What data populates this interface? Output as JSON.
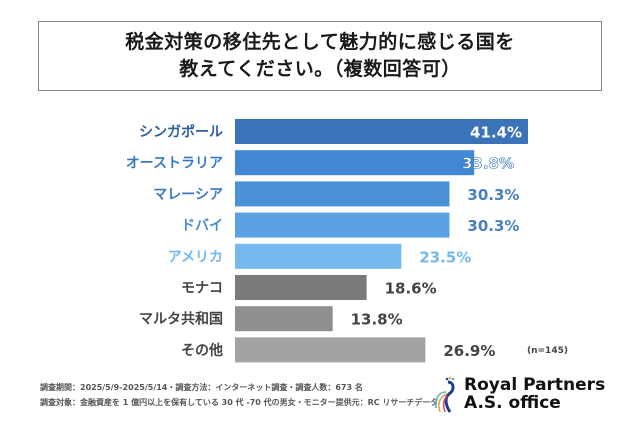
{
  "title": {
    "line1": "税金対策の移住先として魅力的に感じる国を",
    "line2": "教えてください。（複数回答可）"
  },
  "chart_data": {
    "type": "bar",
    "orientation": "horizontal",
    "title": "税金対策の移住先として魅力的に感じる国を教えてください。（複数回答可）",
    "categories": [
      "シンガポール",
      "オーストラリア",
      "マレーシア",
      "ドバイ",
      "アメリカ",
      "モナコ",
      "マルタ共和国",
      "その他"
    ],
    "values": [
      41.4,
      33.8,
      30.3,
      30.3,
      23.5,
      18.6,
      13.8,
      26.9
    ],
    "value_labels": [
      "41.4%",
      "33.8%",
      "30.3%",
      "30.3%",
      "23.5%",
      "18.6%",
      "13.8%",
      "26.9%"
    ],
    "bar_colors": [
      "#3a73b8",
      "#4287d2",
      "#4b91da",
      "#5aa2e2",
      "#74b8ee",
      "#7a7a7a",
      "#8f8f8f",
      "#a3a3a3"
    ],
    "label_colors": [
      "#2f5f9c",
      "#3a78c0",
      "#3a78c0",
      "#4a8fd0",
      "#74b8ee",
      "#444444",
      "#444444",
      "#444444"
    ],
    "value_label_colors": [
      "#ffffff",
      "#ffffff",
      "#4a7fbf",
      "#4a7fbf",
      "#74b8ee",
      "#444444",
      "#444444",
      "#444444"
    ],
    "value_label_inside": [
      true,
      true,
      false,
      false,
      false,
      false,
      false,
      false
    ],
    "xlabel": "",
    "ylabel": "",
    "xlim": [
      0,
      41.4
    ],
    "grid": false,
    "legend": "none",
    "note": "(n=145)"
  },
  "footer": {
    "line1": "調査期間：2025/5/9-2025/5/14・調査方法：インターネット調査・調査人数：673 名",
    "line2": "調査対象：金融資産を 1 億円以上を保有している 30 代 -70 代の男女・モニター提供元：RC リサーチデータ"
  },
  "logo": {
    "line1": "Royal Partners",
    "line2": "A.S. office"
  }
}
